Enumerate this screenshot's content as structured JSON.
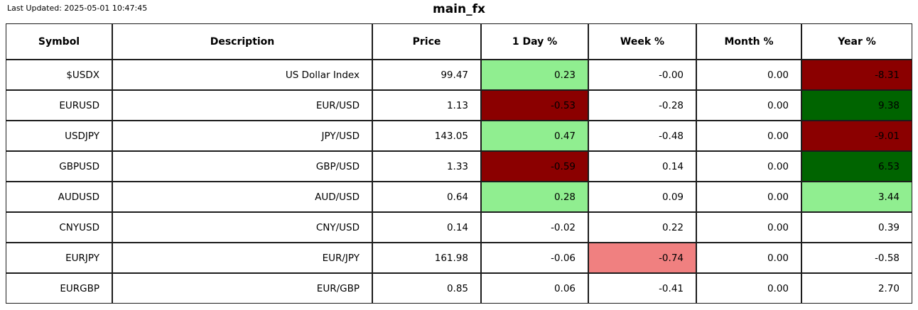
{
  "header": {
    "last_updated": "Last Updated: 2025-05-01 10:47:45",
    "title": "main_fx"
  },
  "colors": {
    "light_green": "#90EE90",
    "dark_green": "#006400",
    "dark_red": "#8B0000",
    "light_red": "#F08080",
    "border": "#1c1c1c"
  },
  "table": {
    "columns": [
      {
        "key": "symbol",
        "label": "Symbol"
      },
      {
        "key": "description",
        "label": "Description"
      },
      {
        "key": "price",
        "label": "Price"
      },
      {
        "key": "1day",
        "label": "1 Day %"
      },
      {
        "key": "week",
        "label": "Week %"
      },
      {
        "key": "month",
        "label": "Month %"
      },
      {
        "key": "year",
        "label": "Year %"
      }
    ],
    "rows": [
      {
        "cells": [
          {
            "v": "$USDX"
          },
          {
            "v": "US Dollar Index"
          },
          {
            "v": "99.47"
          },
          {
            "v": "0.23",
            "bg": "light_green"
          },
          {
            "v": "-0.00"
          },
          {
            "v": "0.00"
          },
          {
            "v": "-8.31",
            "bg": "dark_red"
          }
        ]
      },
      {
        "cells": [
          {
            "v": "EURUSD"
          },
          {
            "v": "EUR/USD"
          },
          {
            "v": "1.13"
          },
          {
            "v": "-0.53",
            "bg": "dark_red"
          },
          {
            "v": "-0.28"
          },
          {
            "v": "0.00"
          },
          {
            "v": "9.38",
            "bg": "dark_green"
          }
        ]
      },
      {
        "cells": [
          {
            "v": "USDJPY"
          },
          {
            "v": "JPY/USD"
          },
          {
            "v": "143.05"
          },
          {
            "v": "0.47",
            "bg": "light_green"
          },
          {
            "v": "-0.48"
          },
          {
            "v": "0.00"
          },
          {
            "v": "-9.01",
            "bg": "dark_red"
          }
        ]
      },
      {
        "cells": [
          {
            "v": "GBPUSD"
          },
          {
            "v": "GBP/USD"
          },
          {
            "v": "1.33"
          },
          {
            "v": "-0.59",
            "bg": "dark_red"
          },
          {
            "v": "0.14"
          },
          {
            "v": "0.00"
          },
          {
            "v": "6.53",
            "bg": "dark_green"
          }
        ]
      },
      {
        "cells": [
          {
            "v": "AUDUSD"
          },
          {
            "v": "AUD/USD"
          },
          {
            "v": "0.64"
          },
          {
            "v": "0.28",
            "bg": "light_green"
          },
          {
            "v": "0.09"
          },
          {
            "v": "0.00"
          },
          {
            "v": "3.44",
            "bg": "light_green"
          }
        ]
      },
      {
        "cells": [
          {
            "v": "CNYUSD"
          },
          {
            "v": "CNY/USD"
          },
          {
            "v": "0.14"
          },
          {
            "v": "-0.02"
          },
          {
            "v": "0.22"
          },
          {
            "v": "0.00"
          },
          {
            "v": "0.39"
          }
        ]
      },
      {
        "cells": [
          {
            "v": "EURJPY"
          },
          {
            "v": "EUR/JPY"
          },
          {
            "v": "161.98"
          },
          {
            "v": "-0.06"
          },
          {
            "v": "-0.74",
            "bg": "light_red"
          },
          {
            "v": "0.00"
          },
          {
            "v": "-0.58"
          }
        ]
      },
      {
        "cells": [
          {
            "v": "EURGBP"
          },
          {
            "v": "EUR/GBP"
          },
          {
            "v": "0.85"
          },
          {
            "v": "0.06"
          },
          {
            "v": "-0.41"
          },
          {
            "v": "0.00"
          },
          {
            "v": "2.70"
          }
        ]
      }
    ]
  }
}
